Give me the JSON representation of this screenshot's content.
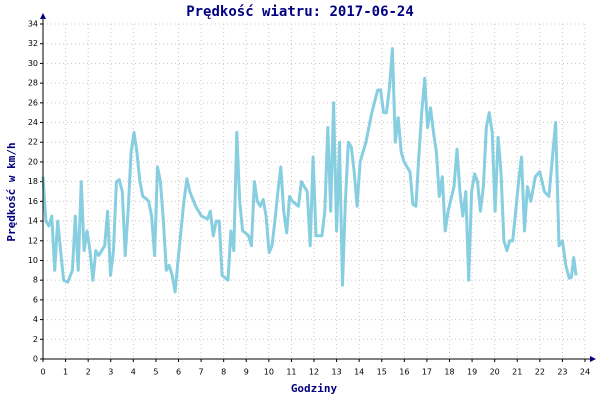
{
  "chart_data": {
    "type": "line",
    "title": "Prędkość wiatru: 2017-06-24",
    "x_label": "Godziny",
    "y_label": "Prędkość w km/h",
    "xlim": [
      0,
      24
    ],
    "ylim": [
      0,
      34
    ],
    "xticks": [
      0,
      1,
      2,
      3,
      4,
      5,
      6,
      7,
      8,
      9,
      10,
      11,
      12,
      13,
      14,
      15,
      16,
      17,
      18,
      19,
      20,
      21,
      22,
      23,
      24
    ],
    "yticks": [
      0,
      2,
      4,
      6,
      8,
      10,
      12,
      14,
      16,
      18,
      20,
      22,
      24,
      26,
      28,
      30,
      32,
      34
    ],
    "grid": true,
    "series": [
      {
        "color": "#87cee0",
        "x": [
          0,
          0.13,
          0.26,
          0.39,
          0.52,
          0.65,
          0.78,
          0.91,
          1.1,
          1.3,
          1.43,
          1.56,
          1.69,
          1.82,
          1.95,
          2.08,
          2.21,
          2.34,
          2.47,
          2.6,
          2.73,
          2.86,
          2.99,
          3.12,
          3.25,
          3.38,
          3.51,
          3.64,
          3.77,
          3.9,
          4.03,
          4.16,
          4.29,
          4.42,
          4.55,
          4.68,
          4.81,
          4.94,
          5.07,
          5.2,
          5.33,
          5.46,
          5.59,
          5.72,
          5.85,
          5.98,
          6.24,
          6.37,
          6.5,
          6.76,
          7.02,
          7.28,
          7.41,
          7.54,
          7.67,
          7.8,
          7.93,
          8.19,
          8.32,
          8.45,
          8.58,
          8.71,
          8.84,
          8.97,
          9.1,
          9.23,
          9.36,
          9.49,
          9.62,
          9.75,
          9.88,
          10.01,
          10.14,
          10.27,
          10.4,
          10.53,
          10.66,
          10.79,
          10.92,
          11.05,
          11.31,
          11.44,
          11.57,
          11.7,
          11.83,
          11.96,
          12.09,
          12.35,
          12.48,
          12.61,
          12.74,
          12.87,
          13.0,
          13.13,
          13.26,
          13.39,
          13.52,
          13.65,
          13.78,
          13.91,
          14.04,
          14.3,
          14.56,
          14.82,
          14.95,
          15.08,
          15.21,
          15.34,
          15.47,
          15.6,
          15.73,
          15.86,
          15.99,
          16.12,
          16.25,
          16.38,
          16.51,
          16.64,
          16.77,
          16.9,
          17.03,
          17.16,
          17.29,
          17.42,
          17.55,
          17.68,
          17.81,
          17.94,
          18.2,
          18.33,
          18.46,
          18.59,
          18.72,
          18.85,
          18.98,
          19.11,
          19.24,
          19.37,
          19.5,
          19.63,
          19.76,
          19.89,
          20.02,
          20.15,
          20.28,
          20.41,
          20.54,
          20.67,
          20.8,
          20.93,
          21.06,
          21.19,
          21.32,
          21.45,
          21.6,
          21.8,
          22.0,
          22.2,
          22.4,
          22.7,
          22.85,
          23.0,
          23.15,
          23.3,
          23.4,
          23.5,
          23.6
        ],
        "values": [
          18.5,
          14,
          13.5,
          14.5,
          9,
          14,
          11,
          8,
          7.8,
          9,
          14.5,
          9,
          18,
          11,
          13,
          11,
          8,
          11,
          10.5,
          11,
          11.5,
          15,
          8.5,
          11,
          18,
          18.2,
          17,
          10.5,
          15,
          21,
          23,
          21,
          18,
          16.5,
          16.3,
          16,
          14.5,
          10.5,
          19.5,
          18,
          14,
          9,
          9.5,
          8.5,
          6.8,
          10,
          16,
          18.3,
          17,
          15.5,
          14.5,
          14.2,
          15,
          12.5,
          14,
          14,
          8.5,
          8,
          13,
          11,
          23,
          16,
          13,
          12.8,
          12.5,
          11.5,
          18,
          16,
          15.5,
          16.2,
          14.5,
          10.8,
          11.5,
          14,
          17,
          19.5,
          15,
          12.8,
          16.5,
          16,
          15.5,
          18,
          17.5,
          17,
          11.5,
          20.5,
          12.5,
          12.5,
          15,
          23.5,
          15,
          26,
          13,
          22,
          7.5,
          16,
          22,
          21.5,
          19,
          15.5,
          20,
          22,
          25,
          27.3,
          27.3,
          25,
          25,
          27.5,
          31.5,
          22,
          24.5,
          21,
          20,
          19.5,
          19,
          15.7,
          15.5,
          20.5,
          25,
          28.5,
          23.5,
          25.5,
          23,
          21,
          16.5,
          18.5,
          13,
          15,
          17.5,
          21.3,
          17,
          14.5,
          17,
          8,
          17,
          18.8,
          18,
          15,
          17.5,
          23.5,
          25,
          23,
          15,
          22.5,
          19,
          12,
          11,
          12,
          12,
          15,
          18,
          20.5,
          13,
          17.5,
          16,
          18.5,
          19,
          17,
          16.5,
          24,
          11.5,
          12,
          9.5,
          8.2,
          8.3,
          10.3,
          8.5
        ]
      }
    ]
  }
}
